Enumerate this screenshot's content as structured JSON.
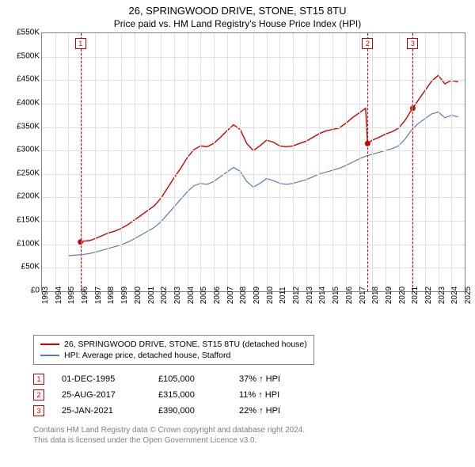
{
  "title": "26, SPRINGWOOD DRIVE, STONE, ST15 8TU",
  "subtitle": "Price paid vs. HM Land Registry's House Price Index (HPI)",
  "chart": {
    "type": "line",
    "x_years": [
      1993,
      1994,
      1995,
      1996,
      1997,
      1998,
      1999,
      2000,
      2001,
      2002,
      2003,
      2004,
      2005,
      2006,
      2007,
      2008,
      2009,
      2010,
      2011,
      2012,
      2013,
      2014,
      2015,
      2016,
      2017,
      2018,
      2019,
      2020,
      2021,
      2022,
      2023,
      2024,
      2025
    ],
    "ylim": [
      0,
      550
    ],
    "ytick_step": 50,
    "ytick_prefix": "£",
    "ytick_suffix": "K",
    "grid_color": "#e0e0e0",
    "border_color": "#808080",
    "background": "#ffffff",
    "series": [
      {
        "name": "property",
        "label": "26, SPRINGWOOD DRIVE, STONE, ST15 8TU (detached house)",
        "color": "#cc0000",
        "width": 1.4,
        "data": [
          [
            1995.92,
            105
          ],
          [
            1996.2,
            107
          ],
          [
            1996.6,
            108
          ],
          [
            1997.0,
            112
          ],
          [
            1997.5,
            118
          ],
          [
            1998.0,
            124
          ],
          [
            1998.5,
            128
          ],
          [
            1999.0,
            134
          ],
          [
            1999.5,
            142
          ],
          [
            2000.0,
            152
          ],
          [
            2000.5,
            162
          ],
          [
            2001.0,
            172
          ],
          [
            2001.5,
            182
          ],
          [
            2002.0,
            198
          ],
          [
            2002.5,
            220
          ],
          [
            2003.0,
            242
          ],
          [
            2003.5,
            262
          ],
          [
            2004.0,
            285
          ],
          [
            2004.5,
            302
          ],
          [
            2005.0,
            310
          ],
          [
            2005.5,
            308
          ],
          [
            2006.0,
            315
          ],
          [
            2006.5,
            328
          ],
          [
            2007.0,
            342
          ],
          [
            2007.5,
            355
          ],
          [
            2008.0,
            345
          ],
          [
            2008.5,
            315
          ],
          [
            2009.0,
            300
          ],
          [
            2009.5,
            310
          ],
          [
            2010.0,
            322
          ],
          [
            2010.5,
            318
          ],
          [
            2011.0,
            310
          ],
          [
            2011.5,
            308
          ],
          [
            2012.0,
            310
          ],
          [
            2012.5,
            315
          ],
          [
            2013.0,
            320
          ],
          [
            2013.5,
            328
          ],
          [
            2014.0,
            336
          ],
          [
            2014.5,
            342
          ],
          [
            2015.0,
            345
          ],
          [
            2015.5,
            348
          ],
          [
            2016.0,
            358
          ],
          [
            2016.5,
            370
          ],
          [
            2017.0,
            380
          ],
          [
            2017.5,
            390
          ],
          [
            2017.65,
            315
          ],
          [
            2018.0,
            322
          ],
          [
            2018.5,
            328
          ],
          [
            2019.0,
            335
          ],
          [
            2019.5,
            340
          ],
          [
            2020.0,
            348
          ],
          [
            2020.5,
            365
          ],
          [
            2021.0,
            388
          ],
          [
            2021.07,
            390
          ],
          [
            2021.5,
            408
          ],
          [
            2022.0,
            428
          ],
          [
            2022.5,
            448
          ],
          [
            2023.0,
            460
          ],
          [
            2023.5,
            442
          ],
          [
            2024.0,
            450
          ],
          [
            2024.5,
            446
          ]
        ]
      },
      {
        "name": "hpi",
        "label": "HPI: Average price, detached house, Stafford",
        "color": "#5b7ba8",
        "width": 1.2,
        "data": [
          [
            1995.0,
            76
          ],
          [
            1995.5,
            77
          ],
          [
            1996.0,
            78
          ],
          [
            1996.5,
            80
          ],
          [
            1997.0,
            83
          ],
          [
            1997.5,
            87
          ],
          [
            1998.0,
            91
          ],
          [
            1998.5,
            95
          ],
          [
            1999.0,
            99
          ],
          [
            1999.5,
            105
          ],
          [
            2000.0,
            112
          ],
          [
            2000.5,
            120
          ],
          [
            2001.0,
            128
          ],
          [
            2001.5,
            136
          ],
          [
            2002.0,
            148
          ],
          [
            2002.5,
            164
          ],
          [
            2003.0,
            180
          ],
          [
            2003.5,
            196
          ],
          [
            2004.0,
            212
          ],
          [
            2004.5,
            225
          ],
          [
            2005.0,
            230
          ],
          [
            2005.5,
            228
          ],
          [
            2006.0,
            234
          ],
          [
            2006.5,
            244
          ],
          [
            2007.0,
            254
          ],
          [
            2007.5,
            264
          ],
          [
            2008.0,
            256
          ],
          [
            2008.5,
            234
          ],
          [
            2009.0,
            222
          ],
          [
            2009.5,
            230
          ],
          [
            2010.0,
            240
          ],
          [
            2010.5,
            236
          ],
          [
            2011.0,
            230
          ],
          [
            2011.5,
            228
          ],
          [
            2012.0,
            230
          ],
          [
            2012.5,
            234
          ],
          [
            2013.0,
            238
          ],
          [
            2013.5,
            244
          ],
          [
            2014.0,
            250
          ],
          [
            2014.5,
            254
          ],
          [
            2015.0,
            258
          ],
          [
            2015.5,
            262
          ],
          [
            2016.0,
            268
          ],
          [
            2016.5,
            275
          ],
          [
            2017.0,
            282
          ],
          [
            2017.5,
            288
          ],
          [
            2018.0,
            292
          ],
          [
            2018.5,
            296
          ],
          [
            2019.0,
            300
          ],
          [
            2019.5,
            304
          ],
          [
            2020.0,
            310
          ],
          [
            2020.5,
            325
          ],
          [
            2021.0,
            345
          ],
          [
            2021.5,
            358
          ],
          [
            2022.0,
            368
          ],
          [
            2022.5,
            378
          ],
          [
            2023.0,
            382
          ],
          [
            2023.5,
            370
          ],
          [
            2024.0,
            375
          ],
          [
            2024.5,
            372
          ]
        ]
      }
    ],
    "sale_markers": [
      {
        "n": "1",
        "year": 1995.92,
        "value": 105,
        "marker_y": 105
      },
      {
        "n": "2",
        "year": 2017.65,
        "value": 315,
        "marker_y": 315
      },
      {
        "n": "3",
        "year": 2021.07,
        "value": 390,
        "marker_y": 390
      }
    ]
  },
  "legend": [
    {
      "color": "#cc0000",
      "label": "26, SPRINGWOOD DRIVE, STONE, ST15 8TU (detached house)"
    },
    {
      "color": "#5b7ba8",
      "label": "HPI: Average price, detached house, Stafford"
    }
  ],
  "sales": [
    {
      "n": "1",
      "date": "01-DEC-1995",
      "price": "£105,000",
      "pct": "37% ↑ HPI"
    },
    {
      "n": "2",
      "date": "25-AUG-2017",
      "price": "£315,000",
      "pct": "11% ↑ HPI"
    },
    {
      "n": "3",
      "date": "25-JAN-2021",
      "price": "£390,000",
      "pct": "22% ↑ HPI"
    }
  ],
  "footer_line1": "Contains HM Land Registry data © Crown copyright and database right 2024.",
  "footer_line2": "This data is licensed under the Open Government Licence v3.0."
}
